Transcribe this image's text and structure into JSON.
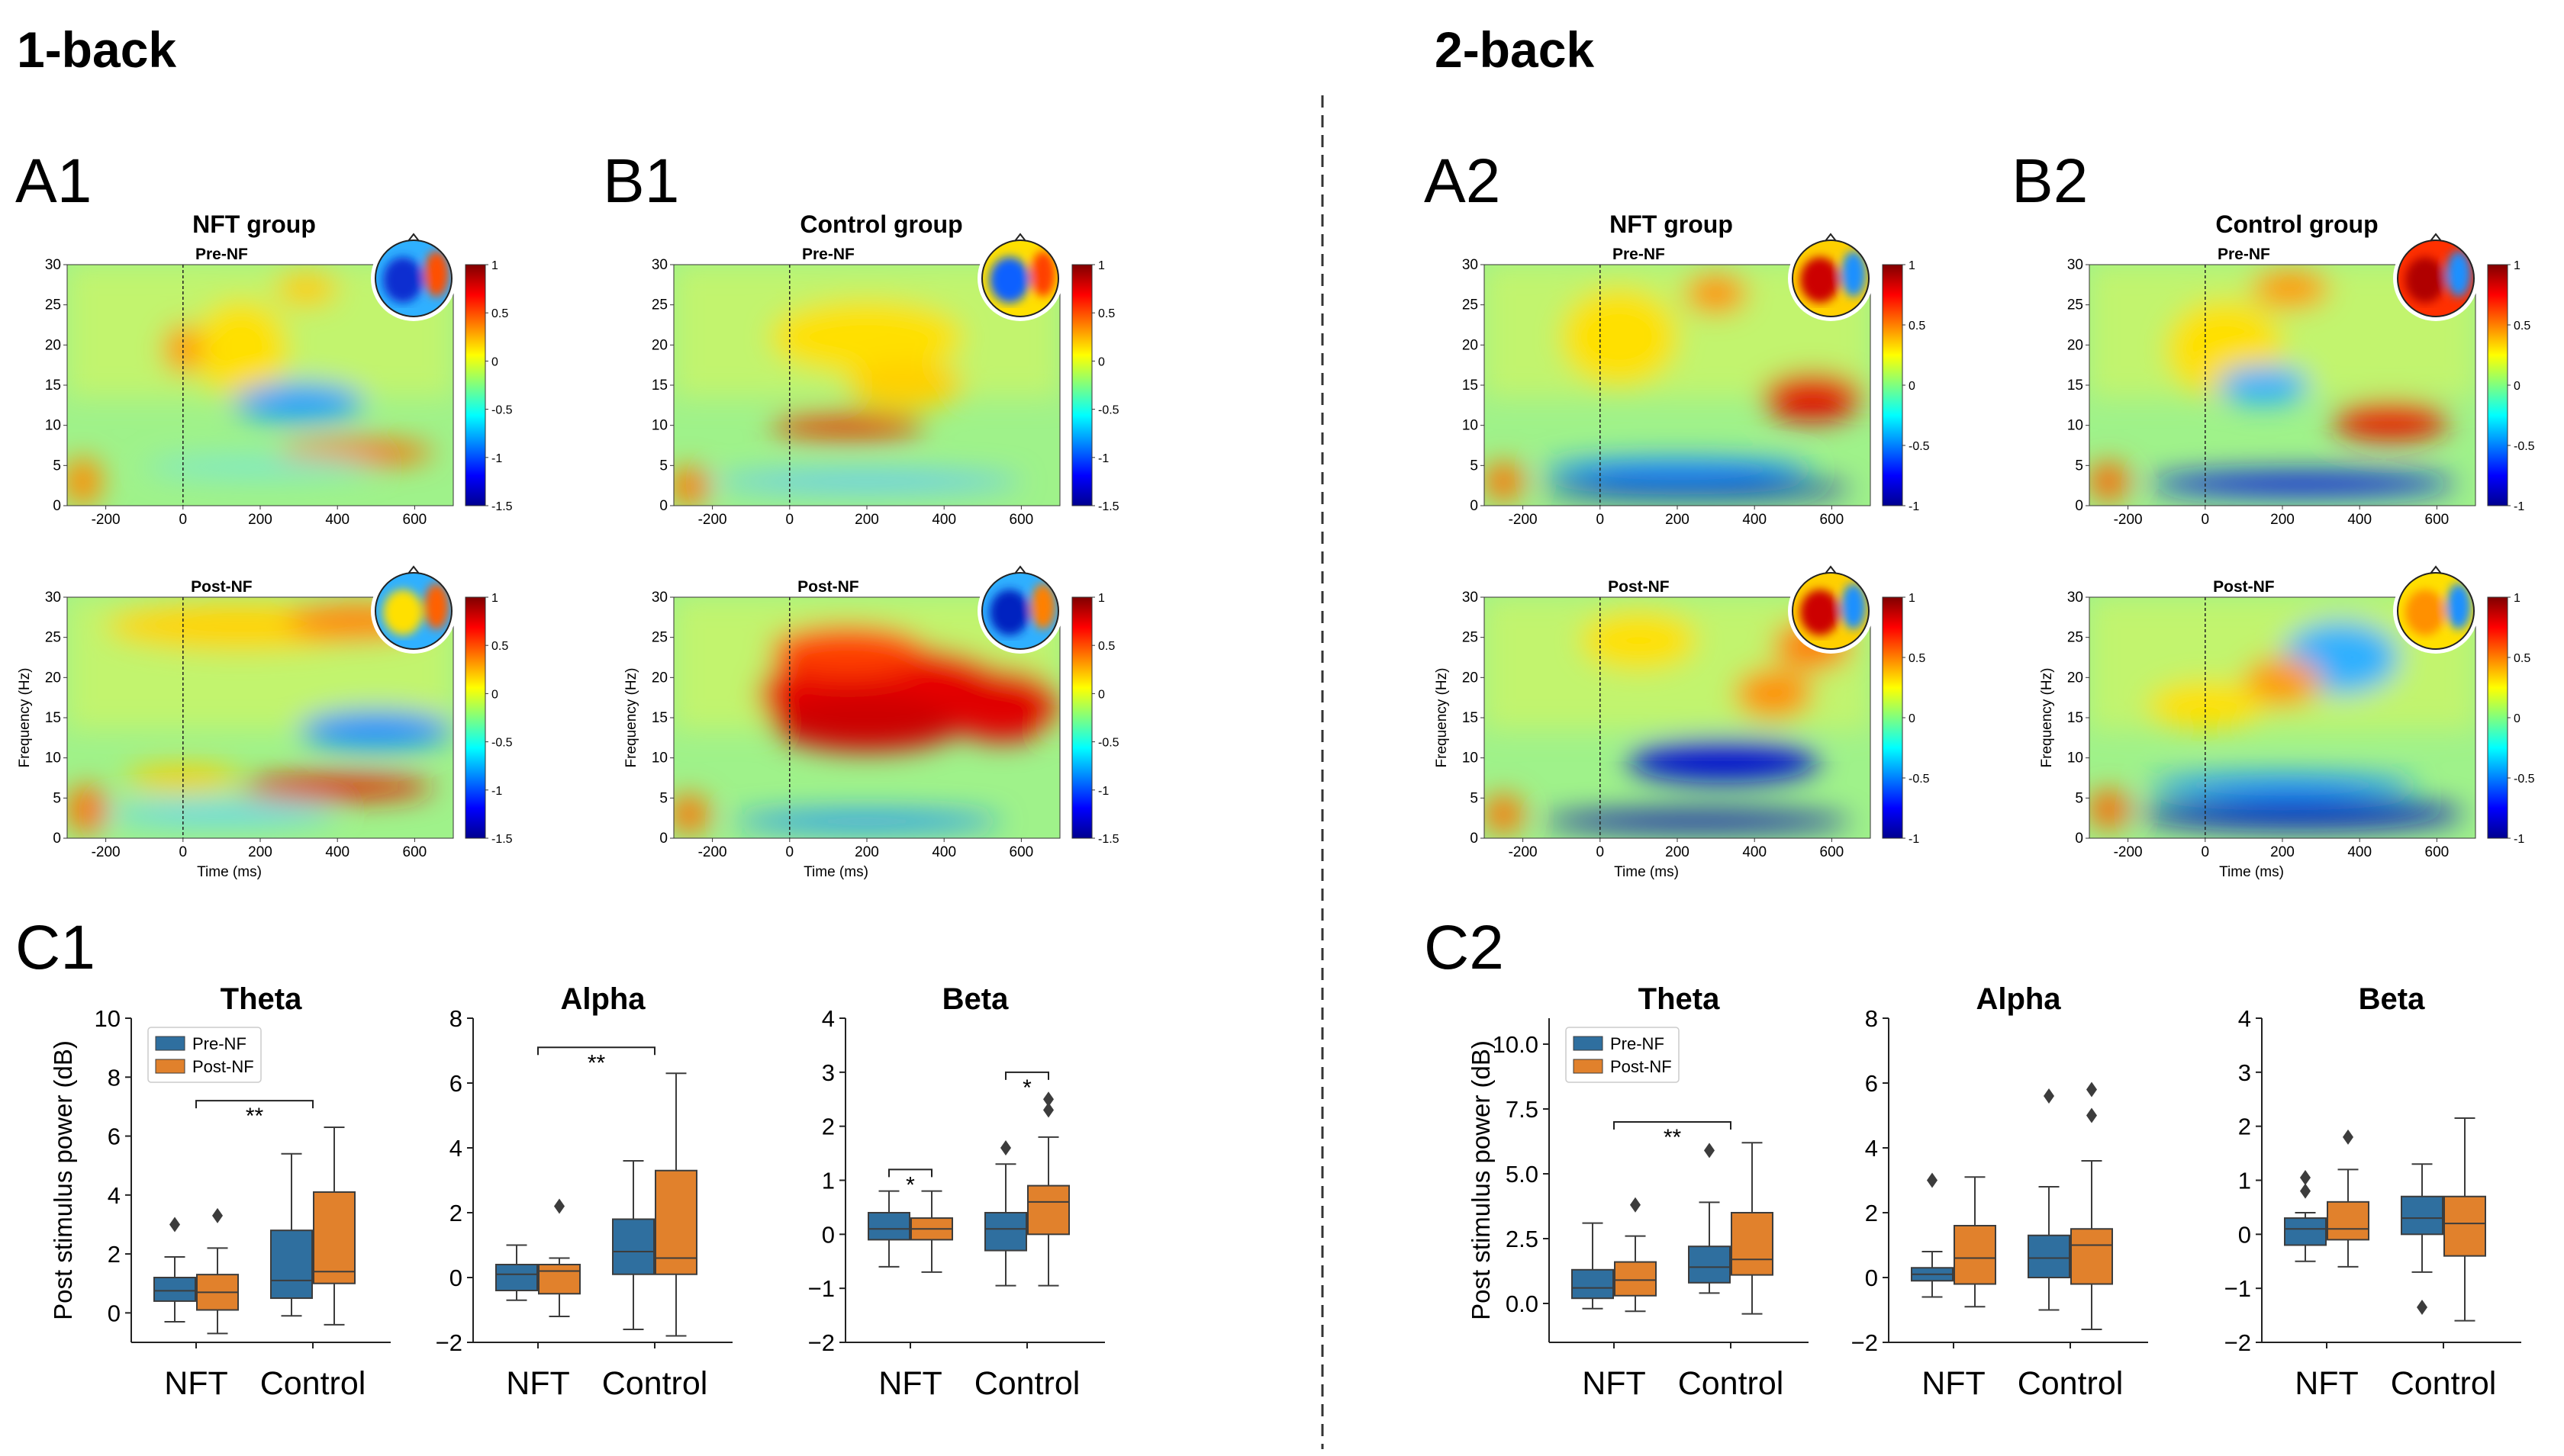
{
  "sections": [
    {
      "label": "1-back",
      "spec_A_label": "A1",
      "spec_B_label": "B1",
      "box_label": "C1"
    },
    {
      "label": "2-back",
      "spec_A_label": "A2",
      "spec_B_label": "B2",
      "box_label": "C2"
    }
  ],
  "chart_data": [
    {
      "type": "heatmap",
      "section": "1-back",
      "panel": "A1",
      "title": "NFT group",
      "subplots": [
        "Pre-NF",
        "Post-NF"
      ],
      "xlabel": "Time (ms)",
      "ylabel": "Frequency (Hz)",
      "xlim": [
        -300,
        700
      ],
      "ylim": [
        0,
        30
      ],
      "xticks": [
        -200,
        0,
        200,
        400,
        600
      ],
      "yticks": [
        0,
        5,
        10,
        15,
        20,
        25,
        30
      ],
      "colorbar_ticks": [
        1,
        0.5,
        0,
        -0.5,
        -1,
        -1.5
      ],
      "colorbar_range": [
        -1.5,
        1
      ]
    },
    {
      "type": "heatmap",
      "section": "1-back",
      "panel": "B1",
      "title": "Control group",
      "subplots": [
        "Pre-NF",
        "Post-NF"
      ],
      "xlabel": "Time (ms)",
      "ylabel": "Frequency (Hz)",
      "xlim": [
        -300,
        700
      ],
      "ylim": [
        0,
        30
      ],
      "xticks": [
        -200,
        0,
        200,
        400,
        600
      ],
      "yticks": [
        0,
        5,
        10,
        15,
        20,
        25,
        30
      ],
      "colorbar_ticks": [
        1,
        0.5,
        0,
        -0.5,
        -1,
        -1.5
      ],
      "colorbar_range": [
        -1.5,
        1
      ]
    },
    {
      "type": "heatmap",
      "section": "2-back",
      "panel": "A2",
      "title": "NFT group",
      "subplots": [
        "Pre-NF",
        "Post-NF"
      ],
      "xlabel": "Time (ms)",
      "ylabel": "Frequency (Hz)",
      "xlim": [
        -300,
        700
      ],
      "ylim": [
        0,
        30
      ],
      "xticks": [
        -200,
        0,
        200,
        400,
        600
      ],
      "yticks": [
        0,
        5,
        10,
        15,
        20,
        25,
        30
      ],
      "colorbar_ticks": [
        1,
        0.5,
        0,
        -0.5,
        -1
      ],
      "colorbar_range": [
        -1,
        1
      ]
    },
    {
      "type": "heatmap",
      "section": "2-back",
      "panel": "B2",
      "title": "Control group",
      "subplots": [
        "Pre-NF",
        "Post-NF"
      ],
      "xlabel": "Time (ms)",
      "ylabel": "Frequency (Hz)",
      "xlim": [
        -300,
        700
      ],
      "ylim": [
        0,
        30
      ],
      "xticks": [
        -200,
        0,
        200,
        400,
        600
      ],
      "yticks": [
        0,
        5,
        10,
        15,
        20,
        25,
        30
      ],
      "colorbar_ticks": [
        1,
        0.5,
        0,
        -0.5,
        -1
      ],
      "colorbar_range": [
        -1,
        1
      ]
    },
    {
      "type": "box",
      "section": "1-back",
      "panel": "C1",
      "ylabel": "Post stimulus power (dB)",
      "categories": [
        "NFT",
        "Control"
      ],
      "legend": [
        "Pre-NF",
        "Post-NF"
      ],
      "colors": {
        "pre": "#2f6f9f",
        "post": "#e1812c"
      },
      "plots": [
        {
          "title": "Theta",
          "ylim": [
            -1,
            10
          ],
          "yticks": [
            0,
            2,
            4,
            6,
            8,
            10
          ],
          "boxes": [
            {
              "group": "NFT",
              "series": "Pre-NF",
              "whislo": -0.3,
              "q1": 0.4,
              "med": 0.75,
              "q3": 1.2,
              "whishi": 1.9,
              "fliers": [
                3.0
              ]
            },
            {
              "group": "NFT",
              "series": "Post-NF",
              "whislo": -0.7,
              "q1": 0.1,
              "med": 0.7,
              "q3": 1.3,
              "whishi": 2.2,
              "fliers": [
                3.3
              ]
            },
            {
              "group": "Control",
              "series": "Pre-NF",
              "whislo": -0.1,
              "q1": 0.5,
              "med": 1.1,
              "q3": 2.8,
              "whishi": 5.4,
              "fliers": []
            },
            {
              "group": "Control",
              "series": "Post-NF",
              "whislo": -0.4,
              "q1": 1.0,
              "med": 1.4,
              "q3": 4.1,
              "whishi": 6.3,
              "fliers": []
            }
          ],
          "significance": [
            {
              "text": "**",
              "y": 7.2
            }
          ]
        },
        {
          "title": "Alpha",
          "ylim": [
            -2,
            8
          ],
          "yticks": [
            -2,
            0,
            2,
            4,
            6,
            8
          ],
          "boxes": [
            {
              "group": "NFT",
              "series": "Pre-NF",
              "whislo": -0.7,
              "q1": -0.4,
              "med": 0.1,
              "q3": 0.4,
              "whishi": 1.0,
              "fliers": []
            },
            {
              "group": "NFT",
              "series": "Post-NF",
              "whislo": -1.2,
              "q1": -0.5,
              "med": 0.2,
              "q3": 0.4,
              "whishi": 0.6,
              "fliers": [
                2.2
              ]
            },
            {
              "group": "Control",
              "series": "Pre-NF",
              "whislo": -1.6,
              "q1": 0.1,
              "med": 0.8,
              "q3": 1.8,
              "whishi": 3.6,
              "fliers": []
            },
            {
              "group": "Control",
              "series": "Post-NF",
              "whislo": -1.8,
              "q1": 0.1,
              "med": 0.6,
              "q3": 3.3,
              "whishi": 6.3,
              "fliers": []
            }
          ],
          "significance": [
            {
              "text": "**",
              "y": 7.1
            }
          ]
        },
        {
          "title": "Beta",
          "ylim": [
            -2,
            4
          ],
          "yticks": [
            -2,
            -1,
            0,
            1,
            2,
            3,
            4
          ],
          "boxes": [
            {
              "group": "NFT",
              "series": "Pre-NF",
              "whislo": -0.6,
              "q1": -0.1,
              "med": 0.1,
              "q3": 0.4,
              "whishi": 0.8,
              "fliers": []
            },
            {
              "group": "NFT",
              "series": "Post-NF",
              "whislo": -0.7,
              "q1": -0.1,
              "med": 0.1,
              "q3": 0.3,
              "whishi": 0.8,
              "fliers": []
            },
            {
              "group": "Control",
              "series": "Pre-NF",
              "whislo": -0.95,
              "q1": -0.3,
              "med": 0.1,
              "q3": 0.4,
              "whishi": 1.3,
              "fliers": [
                1.6
              ]
            },
            {
              "group": "Control",
              "series": "Post-NF",
              "whislo": -0.95,
              "q1": 0.0,
              "med": 0.6,
              "q3": 0.9,
              "whishi": 1.8,
              "fliers": [
                2.3,
                2.5
              ]
            }
          ],
          "significance": [
            {
              "text": "*",
              "pair": "NFT",
              "y": 1.2
            },
            {
              "text": "*",
              "pair": "Control",
              "y": 3.0
            }
          ]
        }
      ]
    },
    {
      "type": "box",
      "section": "2-back",
      "panel": "C2",
      "ylabel": "Post stimulus power (dB)",
      "categories": [
        "NFT",
        "Control"
      ],
      "legend": [
        "Pre-NF",
        "Post-NF"
      ],
      "colors": {
        "pre": "#2f6f9f",
        "post": "#e1812c"
      },
      "plots": [
        {
          "title": "Theta",
          "ylim": [
            -1.5,
            11
          ],
          "yticks": [
            0.0,
            2.5,
            5.0,
            7.5,
            10.0
          ],
          "ytick_labels": [
            "0.0",
            "2.5",
            "5.0",
            "7.5",
            "10.0"
          ],
          "boxes": [
            {
              "group": "NFT",
              "series": "Pre-NF",
              "whislo": -0.2,
              "q1": 0.2,
              "med": 0.6,
              "q3": 1.3,
              "whishi": 3.1,
              "fliers": []
            },
            {
              "group": "NFT",
              "series": "Post-NF",
              "whislo": -0.3,
              "q1": 0.3,
              "med": 0.9,
              "q3": 1.6,
              "whishi": 2.6,
              "fliers": [
                3.8
              ]
            },
            {
              "group": "Control",
              "series": "Pre-NF",
              "whislo": 0.4,
              "q1": 0.8,
              "med": 1.4,
              "q3": 2.2,
              "whishi": 3.9,
              "fliers": [
                5.9
              ]
            },
            {
              "group": "Control",
              "series": "Post-NF",
              "whislo": -0.4,
              "q1": 1.1,
              "med": 1.7,
              "q3": 3.5,
              "whishi": 6.2,
              "fliers": []
            }
          ],
          "significance": [
            {
              "text": "**",
              "y": 7.0
            }
          ]
        },
        {
          "title": "Alpha",
          "ylim": [
            -2,
            8
          ],
          "yticks": [
            -2,
            0,
            2,
            4,
            6,
            8
          ],
          "boxes": [
            {
              "group": "NFT",
              "series": "Pre-NF",
              "whislo": -0.6,
              "q1": -0.1,
              "med": 0.1,
              "q3": 0.3,
              "whishi": 0.8,
              "fliers": [
                3.0
              ]
            },
            {
              "group": "NFT",
              "series": "Post-NF",
              "whislo": -0.9,
              "q1": -0.2,
              "med": 0.6,
              "q3": 1.6,
              "whishi": 3.1,
              "fliers": []
            },
            {
              "group": "Control",
              "series": "Pre-NF",
              "whislo": -1.0,
              "q1": 0.0,
              "med": 0.6,
              "q3": 1.3,
              "whishi": 2.8,
              "fliers": [
                5.6
              ]
            },
            {
              "group": "Control",
              "series": "Post-NF",
              "whislo": -1.6,
              "q1": -0.2,
              "med": 1.0,
              "q3": 1.5,
              "whishi": 3.6,
              "fliers": [
                5.0,
                5.8
              ]
            }
          ],
          "significance": []
        },
        {
          "title": "Beta",
          "ylim": [
            -2,
            4
          ],
          "yticks": [
            -2,
            -1,
            0,
            1,
            2,
            3,
            4
          ],
          "boxes": [
            {
              "group": "NFT",
              "series": "Pre-NF",
              "whislo": -0.5,
              "q1": -0.2,
              "med": 0.1,
              "q3": 0.3,
              "whishi": 0.4,
              "fliers": [
                0.8,
                1.05
              ]
            },
            {
              "group": "NFT",
              "series": "Post-NF",
              "whislo": -0.6,
              "q1": -0.1,
              "med": 0.1,
              "q3": 0.6,
              "whishi": 1.2,
              "fliers": [
                1.8
              ]
            },
            {
              "group": "Control",
              "series": "Pre-NF",
              "whislo": -0.7,
              "q1": 0.0,
              "med": 0.3,
              "q3": 0.7,
              "whishi": 1.3,
              "fliers": [
                -1.35
              ]
            },
            {
              "group": "Control",
              "series": "Post-NF",
              "whislo": -1.6,
              "q1": -0.4,
              "med": 0.2,
              "q3": 0.7,
              "whishi": 2.15,
              "fliers": []
            }
          ],
          "significance": []
        }
      ]
    }
  ]
}
